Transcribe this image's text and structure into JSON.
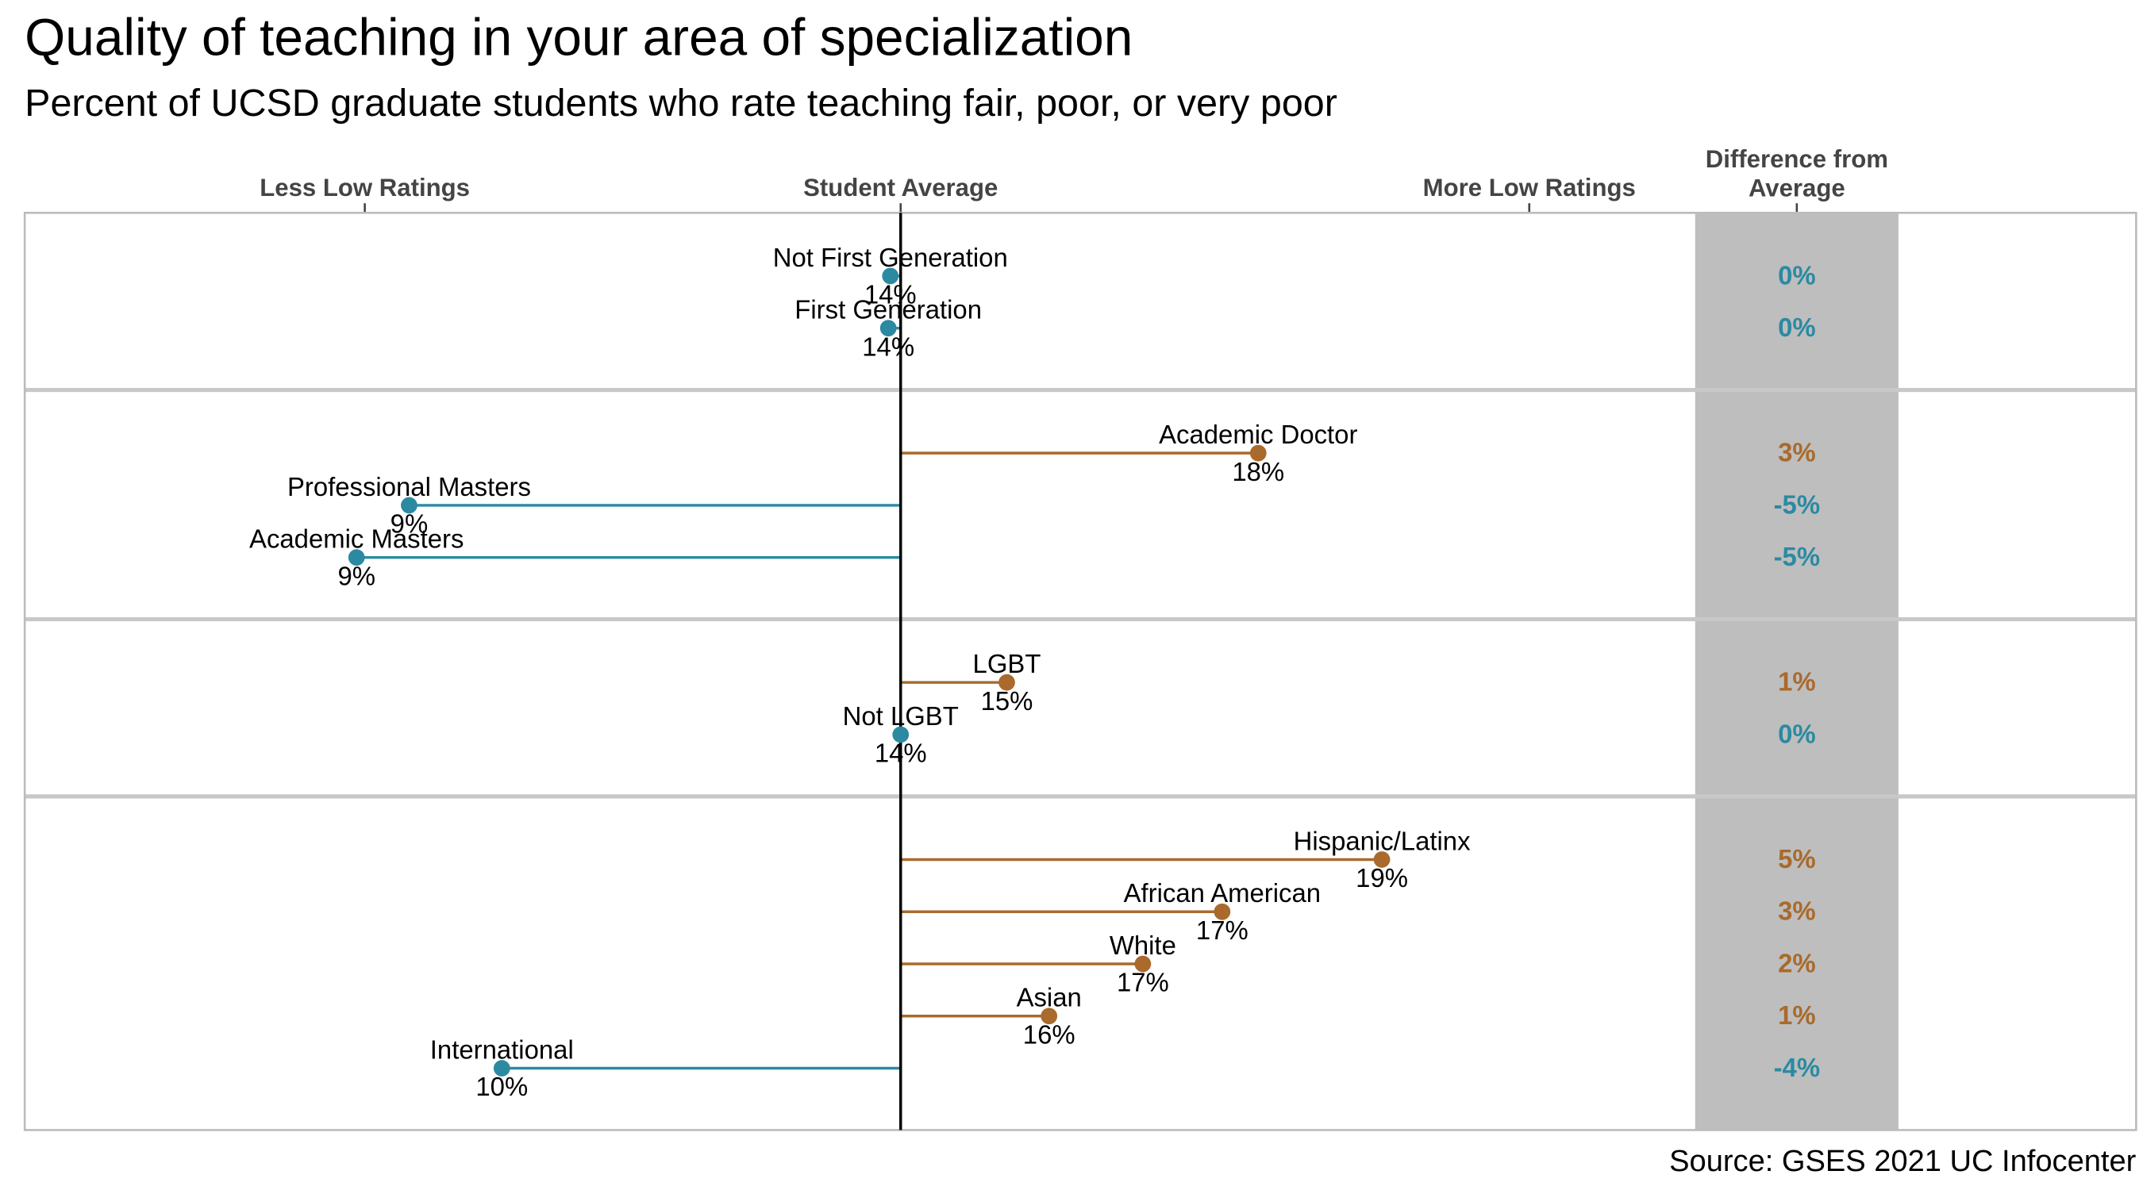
{
  "chart_data": {
    "type": "lollipop",
    "title": "Quality of teaching in your area of specialization",
    "subtitle": "Percent of UCSD graduate students who rate teaching fair, poor, or very poor",
    "source": "Source: GSES 2021 UC Infocenter",
    "difference_header": "Difference from Average",
    "average": 14.2,
    "xlim": [
      5.7,
      21.91
    ],
    "xticks": [
      {
        "value": 9,
        "label": "Less Low Ratings"
      },
      {
        "value": 14.2,
        "label": "Student Average"
      },
      {
        "value": 20.3,
        "label": "More Low Ratings"
      }
    ],
    "color_below": "#2b8aa2",
    "color_above": "#a96a2c",
    "groups": [
      {
        "items": [
          {
            "label": "Not First Generation",
            "value": 14.1,
            "value_label": "14%",
            "difference": 0,
            "difference_label": "0%"
          },
          {
            "label": "First Generation",
            "value": 14.08,
            "value_label": "14%",
            "difference": 0,
            "difference_label": "0%"
          }
        ]
      },
      {
        "items": [
          {
            "label": "Academic Doctor",
            "value": 17.67,
            "value_label": "18%",
            "difference": 3,
            "difference_label": "3%"
          },
          {
            "label": "Professional Masters",
            "value": 9.43,
            "value_label": "9%",
            "difference": -5,
            "difference_label": "-5%"
          },
          {
            "label": "Academic Masters",
            "value": 8.92,
            "value_label": "9%",
            "difference": -5,
            "difference_label": "-5%"
          }
        ]
      },
      {
        "items": [
          {
            "label": "LGBT",
            "value": 15.23,
            "value_label": "15%",
            "difference": 1,
            "difference_label": "1%"
          },
          {
            "label": "Not LGBT",
            "value": 14.2,
            "value_label": "14%",
            "difference": 0,
            "difference_label": "0%"
          }
        ]
      },
      {
        "items": [
          {
            "label": "Hispanic/Latinx",
            "value": 18.87,
            "value_label": "19%",
            "difference": 5,
            "difference_label": "5%"
          },
          {
            "label": "African American",
            "value": 17.32,
            "value_label": "17%",
            "difference": 3,
            "difference_label": "3%"
          },
          {
            "label": "White",
            "value": 16.55,
            "value_label": "17%",
            "difference": 2,
            "difference_label": "2%"
          },
          {
            "label": "Asian",
            "value": 15.64,
            "value_label": "16%",
            "difference": 1,
            "difference_label": "1%"
          },
          {
            "label": "International",
            "value": 10.33,
            "value_label": "10%",
            "difference": -4,
            "difference_label": "-4%"
          }
        ]
      }
    ]
  }
}
